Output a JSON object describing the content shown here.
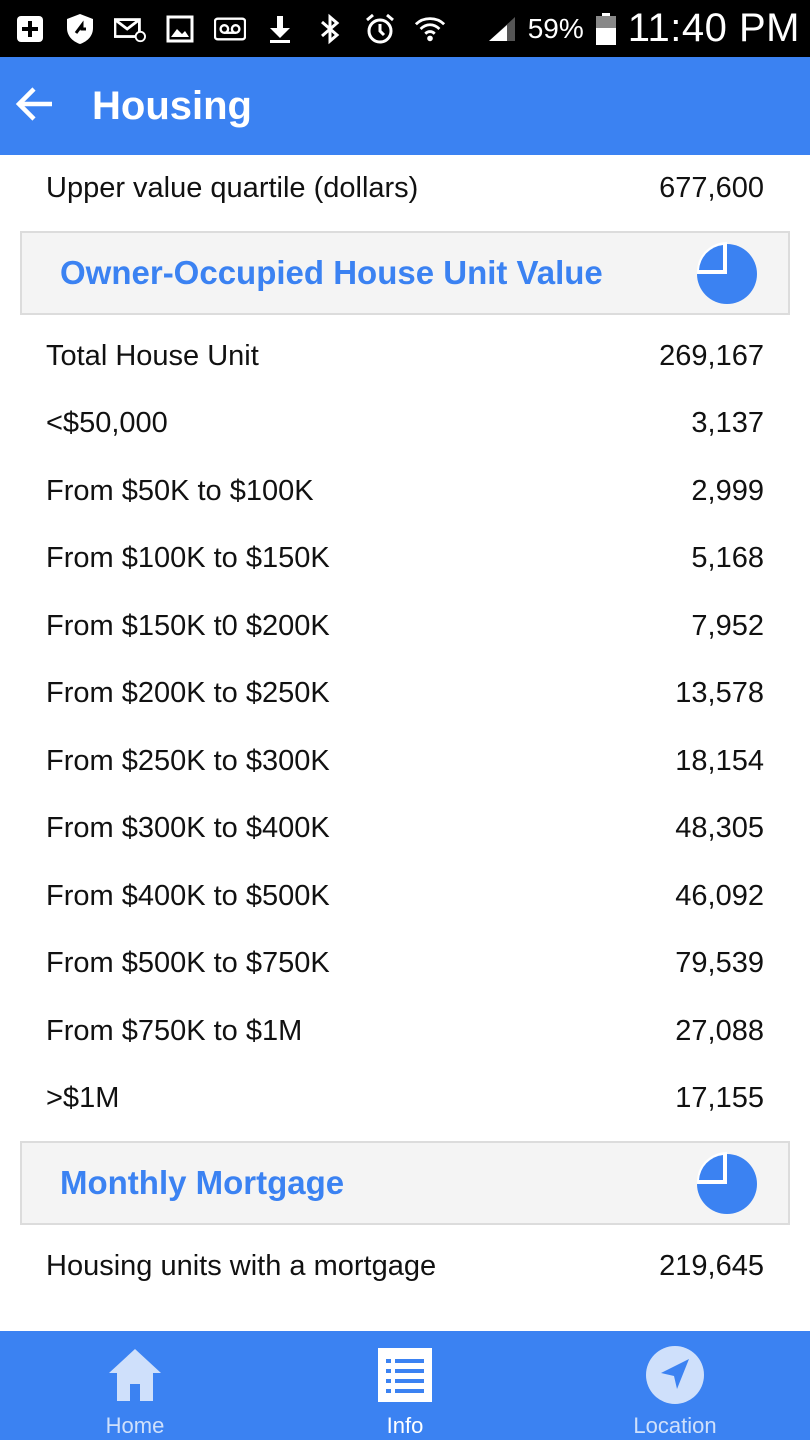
{
  "status_bar": {
    "battery_percent": "59%",
    "time": "11:40 PM",
    "icons": [
      "add-box-icon",
      "shield-icon",
      "email-icon",
      "image-icon",
      "voicemail-icon",
      "download-icon",
      "bluetooth-icon",
      "alarm-icon",
      "wifi-icon",
      "signal-icon",
      "battery-icon"
    ]
  },
  "app_bar": {
    "title": "Housing",
    "back_icon": "arrow-left-icon"
  },
  "top_row": {
    "label": "Upper value quartile (dollars)",
    "value": "677,600"
  },
  "sections": {
    "house_value": {
      "title": "Owner-Occupied House Unit Value",
      "rows": [
        {
          "label": "Total House Unit",
          "value": "269,167"
        },
        {
          "label": "<$50,000",
          "value": "3,137"
        },
        {
          "label": "From $50K to $100K",
          "value": "2,999"
        },
        {
          "label": "From $100K to $150K",
          "value": "5,168"
        },
        {
          "label": "From $150K t0 $200K",
          "value": "7,952"
        },
        {
          "label": "From $200K to $250K",
          "value": "13,578"
        },
        {
          "label": "From $250K to $300K",
          "value": "18,154"
        },
        {
          "label": "From $300K to $400K",
          "value": "48,305"
        },
        {
          "label": "From $400K to $500K",
          "value": "46,092"
        },
        {
          "label": "From $500K to $750K",
          "value": "79,539"
        },
        {
          "label": "From $750K to $1M",
          "value": "27,088"
        },
        {
          "label": ">$1M",
          "value": "17,155"
        }
      ]
    },
    "mortgage": {
      "title": "Monthly Mortgage",
      "rows": [
        {
          "label": "Housing units with a mortgage",
          "value": "219,645"
        }
      ]
    }
  },
  "bottom_nav": {
    "items": [
      {
        "label": "Home",
        "icon": "home-icon",
        "active": false
      },
      {
        "label": "Info",
        "icon": "list-icon",
        "active": true
      },
      {
        "label": "Location",
        "icon": "navigation-icon",
        "active": false
      }
    ]
  },
  "colors": {
    "accent": "#3b82f2",
    "section_bg": "#f4f4f4",
    "status_bar": "#000000"
  }
}
